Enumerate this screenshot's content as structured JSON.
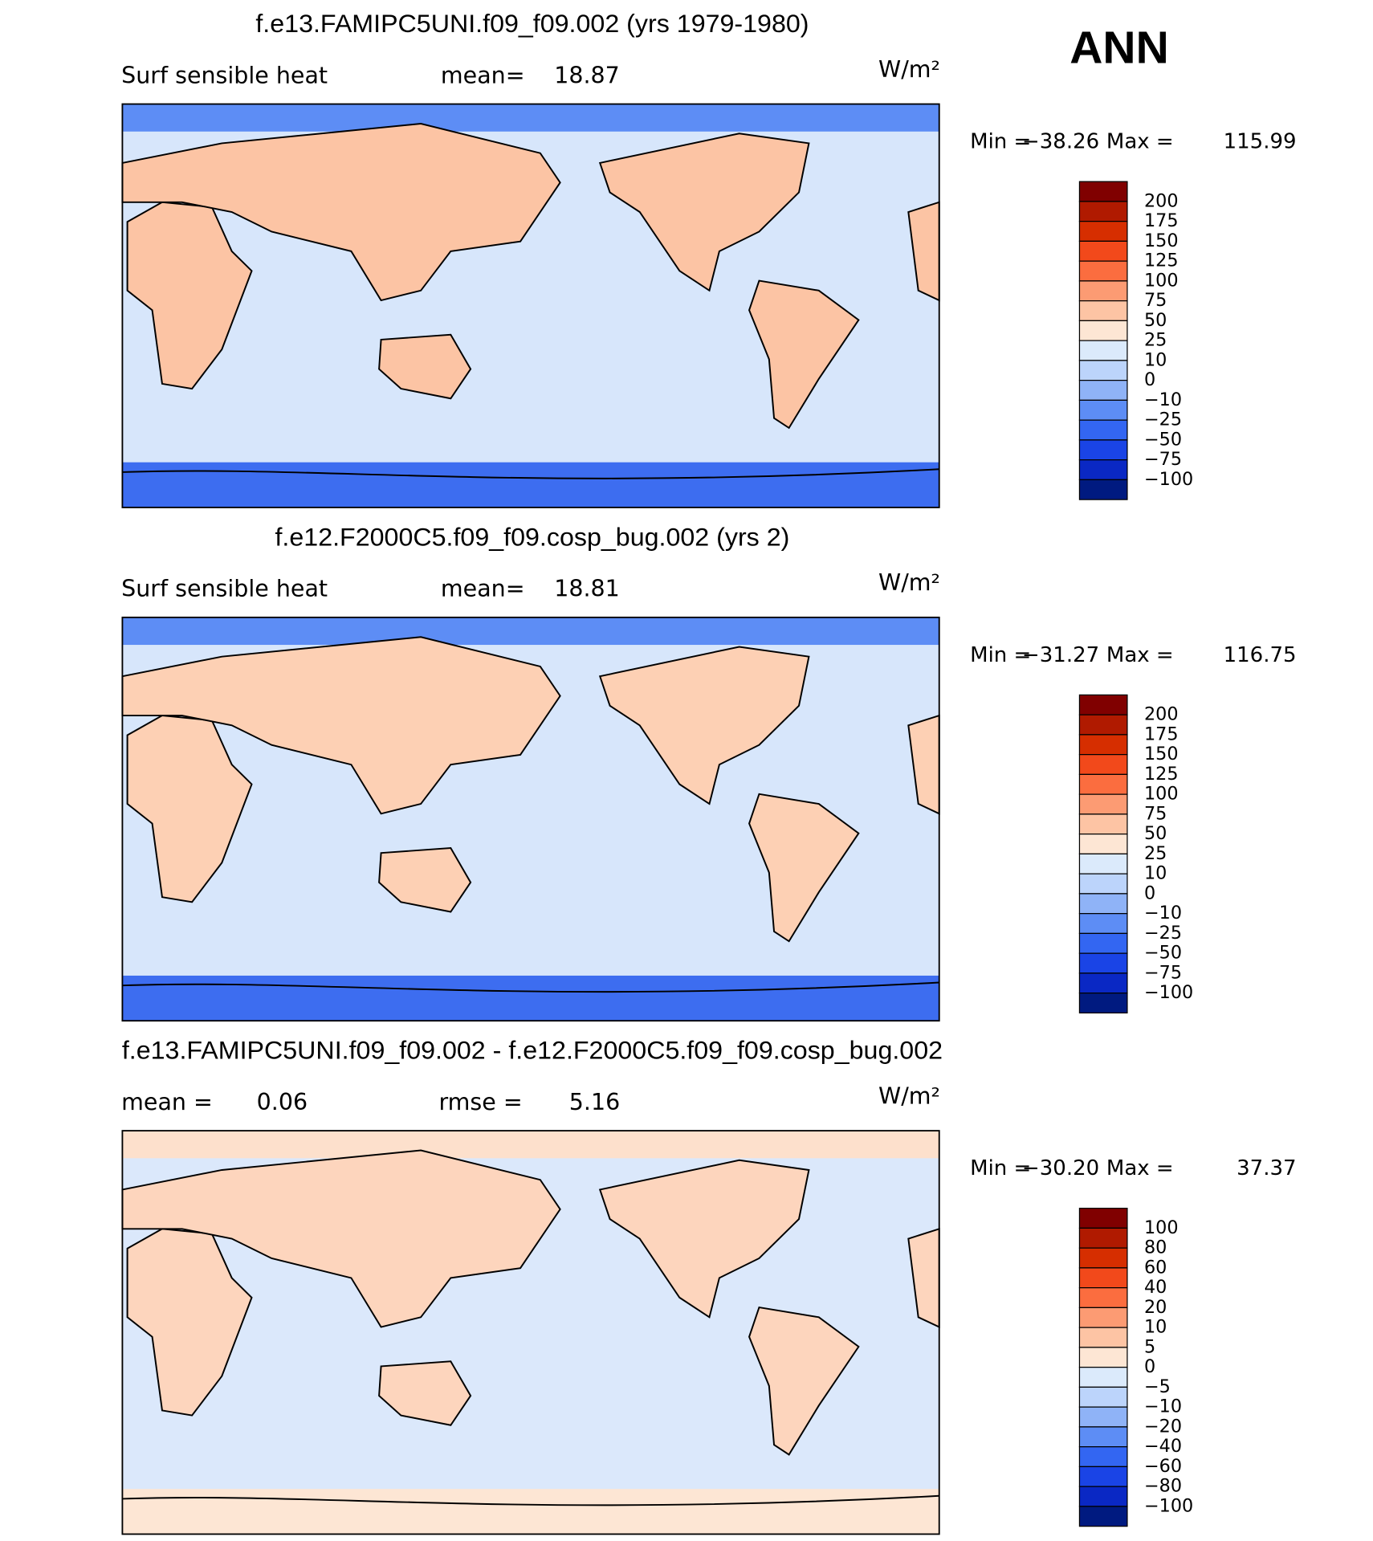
{
  "season": "ANN",
  "panels": [
    {
      "title": "f.e13.FAMIPC5UNI.f09_f09.002 (yrs 1979-1980)",
      "stats": [
        "Surf sensible heat",
        "mean=",
        "18.87"
      ],
      "units": "W/m²",
      "minmax": [
        "Min =",
        "−38.26",
        "Max =",
        "115.99"
      ],
      "colorbar": {
        "levels": [
          "200",
          "175",
          "150",
          "125",
          "100",
          "75",
          "50",
          "25",
          "10",
          "0",
          "−10",
          "−25",
          "−50",
          "−75",
          "−100"
        ],
        "colors": [
          "#800000",
          "#b01a00",
          "#d62e00",
          "#f2491b",
          "#fb6d3f",
          "#fc9b73",
          "#fdc4a4",
          "#fde6d4",
          "#dbeafb",
          "#bcd4fb",
          "#8fb3f7",
          "#5d8df5",
          "#3366f2",
          "#1a44e6",
          "#0a28c4",
          "#001a80"
        ]
      }
    },
    {
      "title": "f.e12.F2000C5.f09_f09.cosp_bug.002 (yrs 2)",
      "stats": [
        "Surf sensible heat",
        "mean=",
        "18.81"
      ],
      "units": "W/m²",
      "minmax": [
        "Min =",
        "−31.27",
        "Max =",
        "116.75"
      ],
      "colorbar": {
        "levels": [
          "200",
          "175",
          "150",
          "125",
          "100",
          "75",
          "50",
          "25",
          "10",
          "0",
          "−10",
          "−25",
          "−50",
          "−75",
          "−100"
        ],
        "colors": [
          "#800000",
          "#b01a00",
          "#d62e00",
          "#f2491b",
          "#fb6d3f",
          "#fc9b73",
          "#fdc4a4",
          "#fde6d4",
          "#dbeafb",
          "#bcd4fb",
          "#8fb3f7",
          "#5d8df5",
          "#3366f2",
          "#1a44e6",
          "#0a28c4",
          "#001a80"
        ]
      }
    },
    {
      "title": "f.e13.FAMIPC5UNI.f09_f09.002 - f.e12.F2000C5.f09_f09.cosp_bug.002",
      "stats": [
        "mean =",
        "0.06",
        "rmse =",
        "5.16"
      ],
      "units": "W/m²",
      "minmax": [
        "Min =",
        "−30.20",
        "Max =",
        "37.37"
      ],
      "colorbar": {
        "levels": [
          "100",
          "80",
          "60",
          "40",
          "20",
          "10",
          "5",
          "0",
          "−5",
          "−10",
          "−20",
          "−40",
          "−60",
          "−80",
          "−100"
        ],
        "colors": [
          "#800000",
          "#b01a00",
          "#d62e00",
          "#f2491b",
          "#fb6d3f",
          "#fc9b73",
          "#fdc4a4",
          "#fde6d4",
          "#dbeafb",
          "#bcd4fb",
          "#8fb3f7",
          "#5d8df5",
          "#3366f2",
          "#1a44e6",
          "#0a28c4",
          "#001a80"
        ]
      }
    }
  ]
}
